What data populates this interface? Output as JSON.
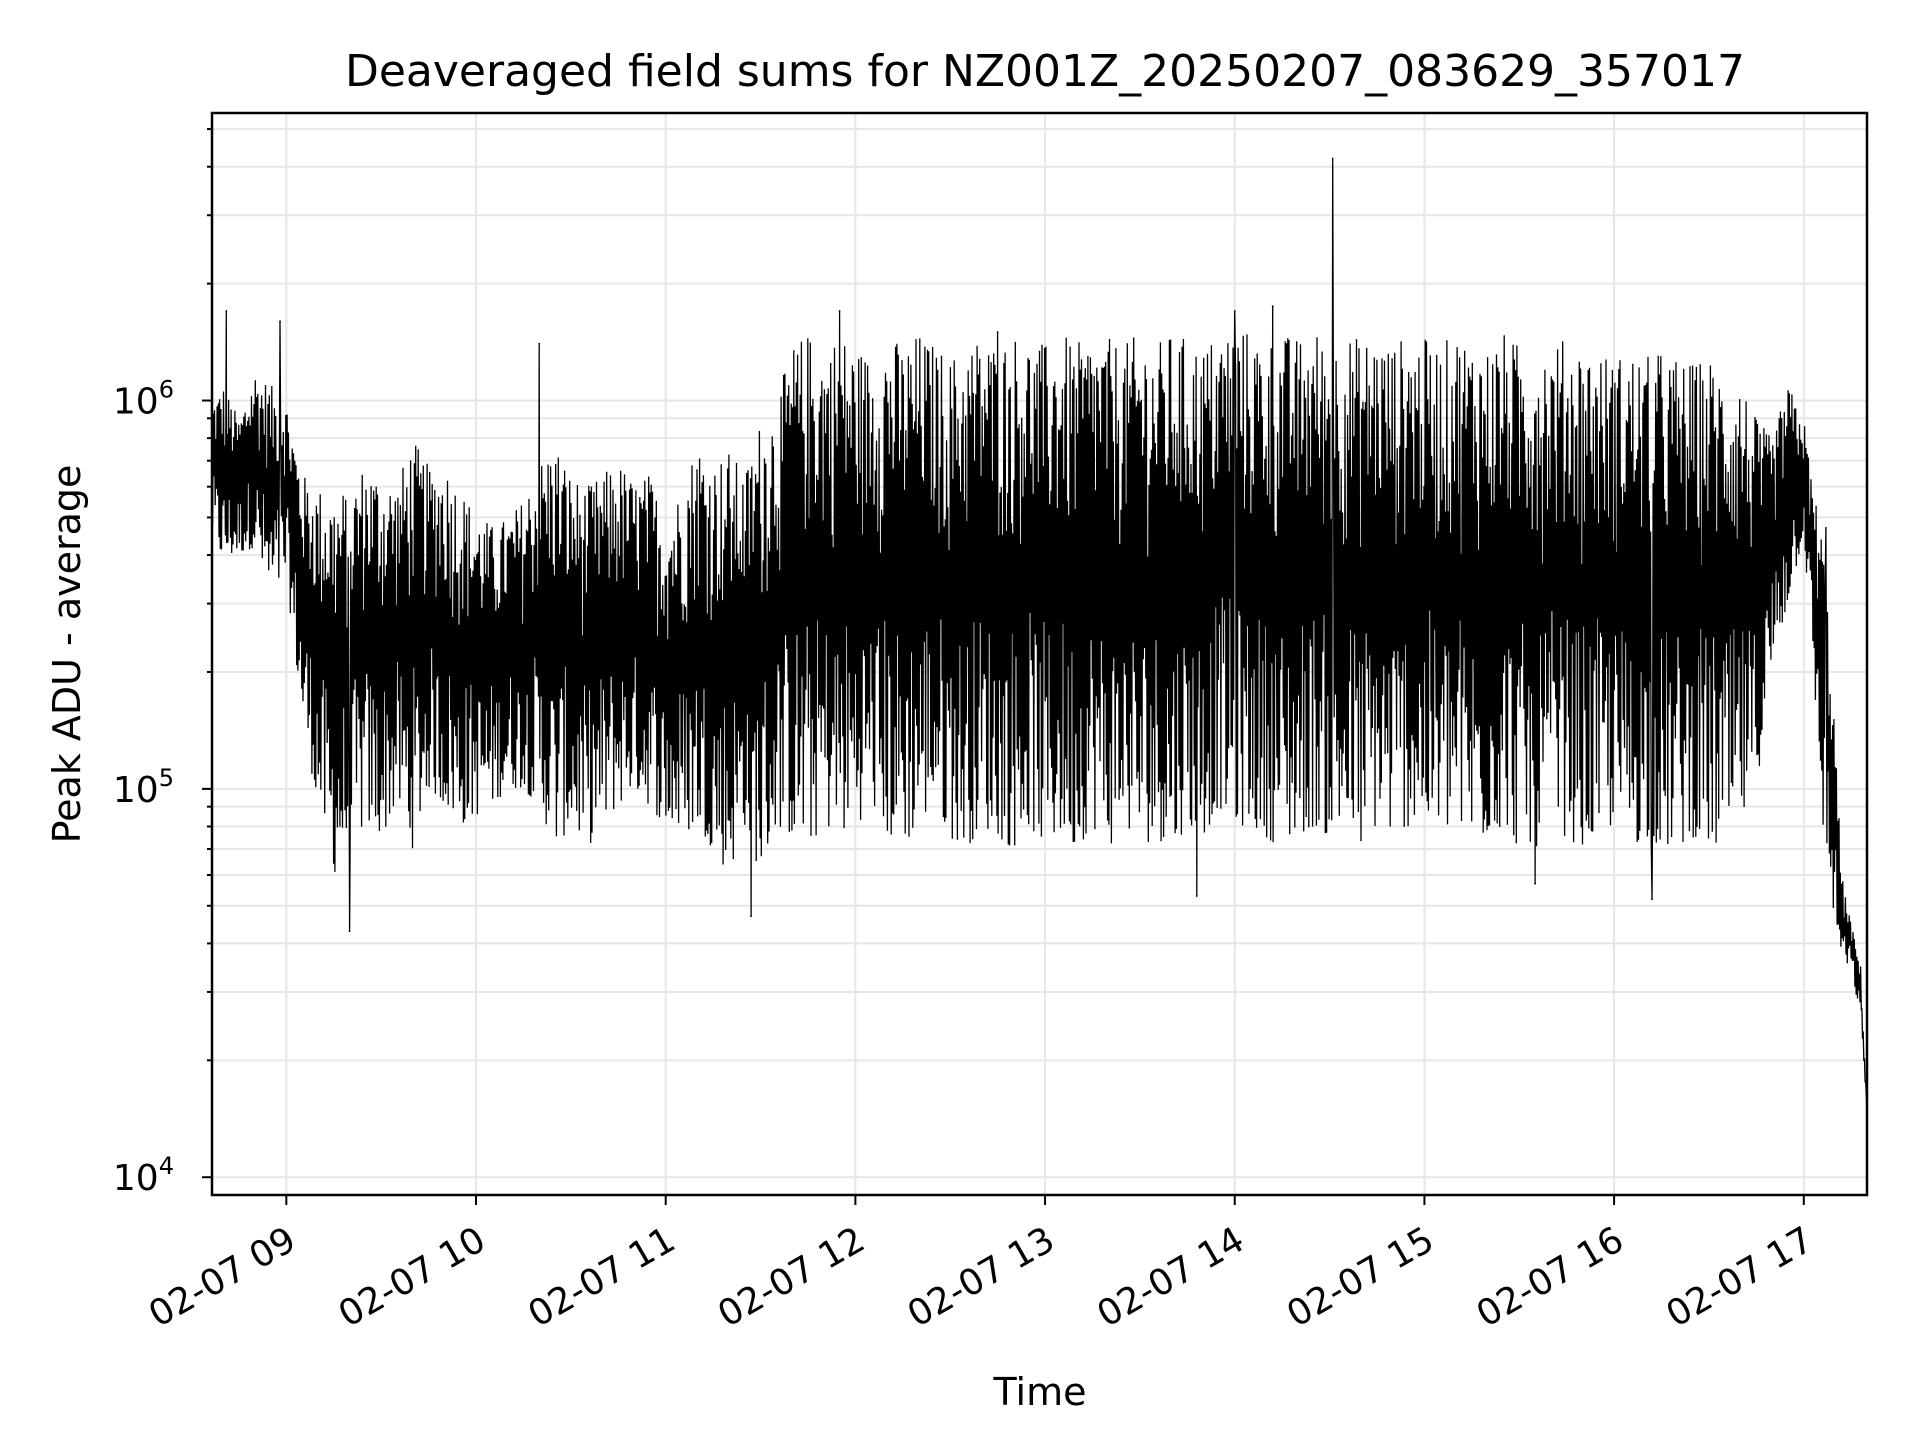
{
  "chart_data": {
    "type": "line",
    "title": "Deaveraged field sums for NZ001Z_20250207_083629_357017",
    "xlabel": "Time",
    "ylabel": "Peak ADU - average",
    "y_scale": "log",
    "ylim": [
      9000,
      5500000
    ],
    "xlim": [
      "2025-02-07 08:36:29",
      "2025-02-07 17:20:00"
    ],
    "grid": true,
    "line_color": "#000000",
    "grid_color": "#e6e6e6",
    "x_ticks": [
      {
        "t": "2025-02-07 09:00",
        "label": "02-07 09"
      },
      {
        "t": "2025-02-07 10:00",
        "label": "02-07 10"
      },
      {
        "t": "2025-02-07 11:00",
        "label": "02-07 11"
      },
      {
        "t": "2025-02-07 12:00",
        "label": "02-07 12"
      },
      {
        "t": "2025-02-07 13:00",
        "label": "02-07 13"
      },
      {
        "t": "2025-02-07 14:00",
        "label": "02-07 14"
      },
      {
        "t": "2025-02-07 15:00",
        "label": "02-07 15"
      },
      {
        "t": "2025-02-07 16:00",
        "label": "02-07 16"
      },
      {
        "t": "2025-02-07 17:00",
        "label": "02-07 17"
      }
    ],
    "y_ticks": [
      {
        "value": 10000,
        "base": "10",
        "exp": "4"
      },
      {
        "value": 100000,
        "base": "10",
        "exp": "5"
      },
      {
        "value": 1000000,
        "base": "10",
        "exp": "6"
      }
    ],
    "series": [
      {
        "x": [
          "2025-02-07 08:36:29",
          "2025-02-07 08:40",
          "2025-02-07 08:45",
          "2025-02-07 08:50",
          "2025-02-07 08:55",
          "2025-02-07 09:00",
          "2025-02-07 09:05",
          "2025-02-07 09:10",
          "2025-02-07 09:15",
          "2025-02-07 09:20",
          "2025-02-07 09:25",
          "2025-02-07 09:30",
          "2025-02-07 09:35",
          "2025-02-07 09:40",
          "2025-02-07 09:45",
          "2025-02-07 09:50",
          "2025-02-07 09:55",
          "2025-02-07 10:00",
          "2025-02-07 10:05",
          "2025-02-07 10:10",
          "2025-02-07 10:15",
          "2025-02-07 10:20",
          "2025-02-07 10:25",
          "2025-02-07 10:30",
          "2025-02-07 10:35",
          "2025-02-07 10:40",
          "2025-02-07 10:45",
          "2025-02-07 10:50",
          "2025-02-07 10:55",
          "2025-02-07 11:00",
          "2025-02-07 11:05",
          "2025-02-07 11:10",
          "2025-02-07 11:15",
          "2025-02-07 11:20",
          "2025-02-07 11:25",
          "2025-02-07 11:30",
          "2025-02-07 11:35",
          "2025-02-07 11:40",
          "2025-02-07 11:45",
          "2025-02-07 11:50",
          "2025-02-07 11:55",
          "2025-02-07 12:00",
          "2025-02-07 12:05",
          "2025-02-07 12:10",
          "2025-02-07 12:15",
          "2025-02-07 12:20",
          "2025-02-07 12:25",
          "2025-02-07 12:30",
          "2025-02-07 12:35",
          "2025-02-07 12:40",
          "2025-02-07 12:45",
          "2025-02-07 12:50",
          "2025-02-07 12:55",
          "2025-02-07 13:00",
          "2025-02-07 13:05",
          "2025-02-07 13:10",
          "2025-02-07 13:15",
          "2025-02-07 13:20",
          "2025-02-07 13:25",
          "2025-02-07 13:30",
          "2025-02-07 13:35",
          "2025-02-07 13:40",
          "2025-02-07 13:45",
          "2025-02-07 13:50",
          "2025-02-07 13:55",
          "2025-02-07 14:00",
          "2025-02-07 14:05",
          "2025-02-07 14:10",
          "2025-02-07 14:15",
          "2025-02-07 14:20",
          "2025-02-07 14:25",
          "2025-02-07 14:30",
          "2025-02-07 14:35",
          "2025-02-07 14:40",
          "2025-02-07 14:45",
          "2025-02-07 14:50",
          "2025-02-07 14:55",
          "2025-02-07 15:00",
          "2025-02-07 15:05",
          "2025-02-07 15:10",
          "2025-02-07 15:15",
          "2025-02-07 15:20",
          "2025-02-07 15:25",
          "2025-02-07 15:30",
          "2025-02-07 15:35",
          "2025-02-07 15:40",
          "2025-02-07 15:45",
          "2025-02-07 15:50",
          "2025-02-07 15:55",
          "2025-02-07 16:00",
          "2025-02-07 16:05",
          "2025-02-07 16:10",
          "2025-02-07 16:15",
          "2025-02-07 16:20",
          "2025-02-07 16:25",
          "2025-02-07 16:30",
          "2025-02-07 16:35",
          "2025-02-07 16:40",
          "2025-02-07 16:45",
          "2025-02-07 16:50",
          "2025-02-07 16:55",
          "2025-02-07 17:00",
          "2025-02-07 17:03",
          "2025-02-07 17:06",
          "2025-02-07 17:09",
          "2025-02-07 17:12",
          "2025-02-07 17:15",
          "2025-02-07 17:18",
          "2025-02-07 17:20"
        ],
        "low": [
          450000,
          380000,
          400000,
          420000,
          300000,
          350000,
          150000,
          90000,
          60000,
          70000,
          80000,
          75000,
          90000,
          70000,
          100000,
          90000,
          80000,
          85000,
          90000,
          100000,
          100000,
          90000,
          70000,
          80000,
          70000,
          80000,
          90000,
          100000,
          90000,
          80000,
          75000,
          80000,
          70000,
          60000,
          80000,
          60000,
          80000,
          75000,
          70000,
          80000,
          75000,
          80000,
          90000,
          75000,
          70000,
          80000,
          90000,
          75000,
          70000,
          80000,
          75000,
          70000,
          80000,
          70000,
          75000,
          70000,
          80000,
          70000,
          80000,
          70000,
          75000,
          70000,
          80000,
          75000,
          90000,
          80000,
          80000,
          75000,
          70000,
          75000,
          80000,
          75000,
          75000,
          70000,
          80000,
          75000,
          80000,
          80000,
          75000,
          80000,
          70000,
          75000,
          80000,
          70000,
          70000,
          80000,
          75000,
          70000,
          75000,
          80000,
          70000,
          75000,
          70000,
          70000,
          75000,
          70000,
          70000,
          80000,
          100000,
          200000,
          300000,
          450000,
          200000,
          80000,
          50000,
          35000,
          35000,
          25000,
          15000
        ],
        "high": [
          1000000,
          1100000,
          900000,
          1200000,
          1100000,
          1000000,
          650000,
          600000,
          580000,
          600000,
          700000,
          650000,
          620000,
          800000,
          680000,
          700000,
          600000,
          520000,
          480000,
          500000,
          560000,
          700000,
          800000,
          650000,
          600000,
          650000,
          700000,
          620000,
          650000,
          500000,
          600000,
          800000,
          700000,
          750000,
          650000,
          900000,
          1000000,
          1400000,
          1500000,
          1400000,
          1500000,
          1400000,
          1300000,
          1500000,
          1400000,
          1500000,
          1400000,
          1300000,
          1400000,
          1500000,
          1400000,
          1500000,
          1450000,
          1400000,
          1500000,
          1400000,
          1500000,
          1450000,
          1400000,
          1500000,
          1400000,
          1500000,
          1450000,
          1400000,
          1500000,
          1600000,
          1500000,
          1450000,
          1500000,
          1450000,
          1550000,
          1400000,
          1500000,
          1450000,
          1500000,
          1400000,
          1500000,
          1450000,
          1400000,
          1500000,
          1450000,
          1400000,
          1500000,
          1400000,
          1450000,
          1400000,
          1450000,
          1400000,
          1350000,
          1300000,
          1350000,
          1300000,
          1350000,
          1300000,
          1250000,
          1300000,
          1200000,
          1150000,
          900000,
          800000,
          1100000,
          900000,
          600000,
          450000,
          200000,
          60000,
          45000,
          35000,
          15000
        ],
        "spikes": [
          {
            "t": "2025-02-07 08:41",
            "value": 1700000
          },
          {
            "t": "2025-02-07 08:58",
            "value": 1600000
          },
          {
            "t": "2025-02-07 09:20",
            "value": 43000
          },
          {
            "t": "2025-02-07 10:20",
            "value": 1400000
          },
          {
            "t": "2025-02-07 11:27",
            "value": 47000
          },
          {
            "t": "2025-02-07 11:55",
            "value": 1700000
          },
          {
            "t": "2025-02-07 12:45",
            "value": 1500000
          },
          {
            "t": "2025-02-07 13:48",
            "value": 53000
          },
          {
            "t": "2025-02-07 14:00",
            "value": 1700000
          },
          {
            "t": "2025-02-07 14:12",
            "value": 1750000
          },
          {
            "t": "2025-02-07 14:31",
            "value": 4200000
          },
          {
            "t": "2025-02-07 15:35",
            "value": 57000
          },
          {
            "t": "2025-02-07 16:12",
            "value": 52000
          },
          {
            "t": "2025-02-07 17:07",
            "value": 470000
          }
        ]
      }
    ]
  }
}
